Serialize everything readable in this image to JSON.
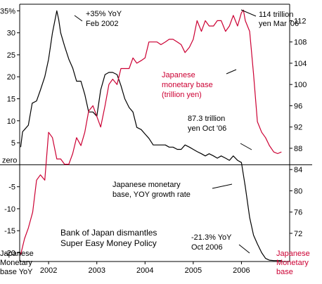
{
  "chart_data": {
    "type": "line",
    "title": "Bank of Japan dismantles Super Easy Money Policy",
    "title_lines": [
      "Bank of Japan dismantles",
      "Super Easy Money Policy"
    ],
    "x_ticks": [
      "2002",
      "2003",
      "2004",
      "2005",
      "2006"
    ],
    "x_tick_values": [
      2002,
      2003,
      2004,
      2005,
      2006
    ],
    "xlim": [
      2001.4,
      2007.0
    ],
    "left_axis": {
      "label_lines": [
        "Japanese",
        "Monetary",
        "base YoY"
      ],
      "ticks": [
        "+35%",
        "30",
        "25",
        "20",
        "15",
        "10",
        "5",
        "zero",
        "-5",
        "-10",
        "-15",
        "-20"
      ],
      "tick_values": [
        35,
        30,
        25,
        20,
        15,
        10,
        5,
        0,
        -5,
        -10,
        -15,
        -20
      ],
      "ylim": [
        -22,
        36.5
      ]
    },
    "right_axis": {
      "label_lines": [
        "Japanese",
        "Monetary",
        "base"
      ],
      "ticks": [
        "112",
        "108",
        "104",
        "100",
        "96",
        "92",
        "88",
        "84",
        "80",
        "76",
        "72"
      ],
      "tick_values": [
        112,
        108,
        104,
        100,
        96,
        92,
        88,
        84,
        80,
        76,
        72
      ],
      "ylim": [
        66.7,
        115.1
      ]
    },
    "zero_line": true,
    "series": [
      {
        "name": "Japanese monetary base, YOY growth rate",
        "axis": "left",
        "color": "#000000",
        "x": [
          2001.42,
          2001.46,
          2001.5,
          2001.58,
          2001.66,
          2001.75,
          2001.83,
          2001.92,
          2002.0,
          2002.08,
          2002.17,
          2002.21,
          2002.25,
          2002.33,
          2002.42,
          2002.5,
          2002.58,
          2002.67,
          2002.75,
          2002.83,
          2002.92,
          2003.0,
          2003.08,
          2003.17,
          2003.25,
          2003.33,
          2003.42,
          2003.5,
          2003.58,
          2003.67,
          2003.75,
          2003.83,
          2003.92,
          2004.0,
          2004.08,
          2004.17,
          2004.25,
          2004.33,
          2004.42,
          2004.5,
          2004.58,
          2004.67,
          2004.75,
          2004.83,
          2004.92,
          2005.0,
          2005.08,
          2005.17,
          2005.25,
          2005.33,
          2005.42,
          2005.5,
          2005.58,
          2005.67,
          2005.75,
          2005.83,
          2005.92,
          2006.0,
          2006.08,
          2006.17,
          2006.25,
          2006.33,
          2006.42,
          2006.5,
          2006.58,
          2006.67,
          2006.75,
          2006.83
        ],
        "y": [
          4,
          7.5,
          8,
          9,
          14,
          14.5,
          17,
          20,
          24,
          30,
          35,
          33,
          30,
          27,
          24,
          22,
          19,
          19,
          16,
          12,
          12,
          11,
          17,
          20.5,
          21,
          21,
          20.5,
          18,
          15,
          13,
          12,
          8.5,
          8,
          7,
          6,
          4.5,
          4.5,
          4.5,
          4.5,
          4,
          4,
          3.5,
          3.5,
          4.5,
          4,
          3.5,
          3,
          2.5,
          2,
          2.5,
          2,
          1.5,
          2,
          1.5,
          1,
          2,
          1,
          0.5,
          -5,
          -12,
          -16,
          -18,
          -20,
          -21.3,
          -21.7,
          -21.8,
          -21.8,
          -21.8
        ]
      },
      {
        "name": "Japanese monetary base (trillion yen)",
        "axis": "right",
        "color": "#cc0033",
        "x": [
          2001.42,
          2001.5,
          2001.58,
          2001.67,
          2001.75,
          2001.83,
          2001.92,
          2002.0,
          2002.08,
          2002.17,
          2002.25,
          2002.33,
          2002.42,
          2002.5,
          2002.58,
          2002.67,
          2002.75,
          2002.83,
          2002.92,
          2003.0,
          2003.08,
          2003.17,
          2003.25,
          2003.33,
          2003.42,
          2003.5,
          2003.58,
          2003.67,
          2003.75,
          2003.83,
          2003.92,
          2004.0,
          2004.08,
          2004.17,
          2004.25,
          2004.33,
          2004.42,
          2004.5,
          2004.58,
          2004.67,
          2004.75,
          2004.83,
          2004.92,
          2005.0,
          2005.08,
          2005.17,
          2005.25,
          2005.33,
          2005.42,
          2005.5,
          2005.58,
          2005.67,
          2005.75,
          2005.83,
          2005.92,
          2006.0,
          2006.04,
          2006.08,
          2006.17,
          2006.25,
          2006.33,
          2006.42,
          2006.5,
          2006.58,
          2006.67,
          2006.75,
          2006.83
        ],
        "y": [
          68,
          71,
          73,
          76,
          82,
          83,
          82,
          91,
          90,
          86,
          86,
          85,
          85,
          87,
          90,
          88.5,
          91,
          95,
          96,
          94,
          92,
          96,
          100,
          101,
          100,
          103,
          103,
          103,
          105,
          104,
          104.5,
          105,
          108,
          108,
          108,
          107.5,
          108,
          108.5,
          108.5,
          108,
          107.5,
          106,
          107,
          108.5,
          112,
          110,
          112,
          111,
          111,
          112,
          112,
          110,
          111,
          113,
          111,
          113.5,
          114,
          112,
          110,
          102,
          93,
          91,
          90,
          88.5,
          87.3,
          87,
          87.3
        ]
      }
    ],
    "annotations": [
      {
        "text_lines": [
          "+35% YoY",
          "Feb 2002"
        ],
        "series": "Japanese monetary base, YOY growth rate",
        "color": "#000000"
      },
      {
        "text_lines": [
          "114 trillion",
          "yen Mar '06"
        ],
        "series": "Japanese monetary base (trillion yen)",
        "color": "#000000"
      },
      {
        "text_lines": [
          "Japanese",
          "monetary base",
          "(trillion yen)"
        ],
        "series": "Japanese monetary base (trillion yen)",
        "color": "#cc0033"
      },
      {
        "text_lines": [
          "87.3 trillion",
          "yen Oct '06"
        ],
        "series": "Japanese monetary base (trillion yen)",
        "color": "#000000"
      },
      {
        "text_lines": [
          "Japanese monetary",
          "base, YOY growth rate"
        ],
        "series": "Japanese monetary base, YOY growth rate",
        "color": "#000000"
      },
      {
        "text_lines": [
          "-21.3% YoY",
          "Oct 2006"
        ],
        "series": "Japanese monetary base, YOY growth rate",
        "color": "#000000"
      }
    ]
  }
}
